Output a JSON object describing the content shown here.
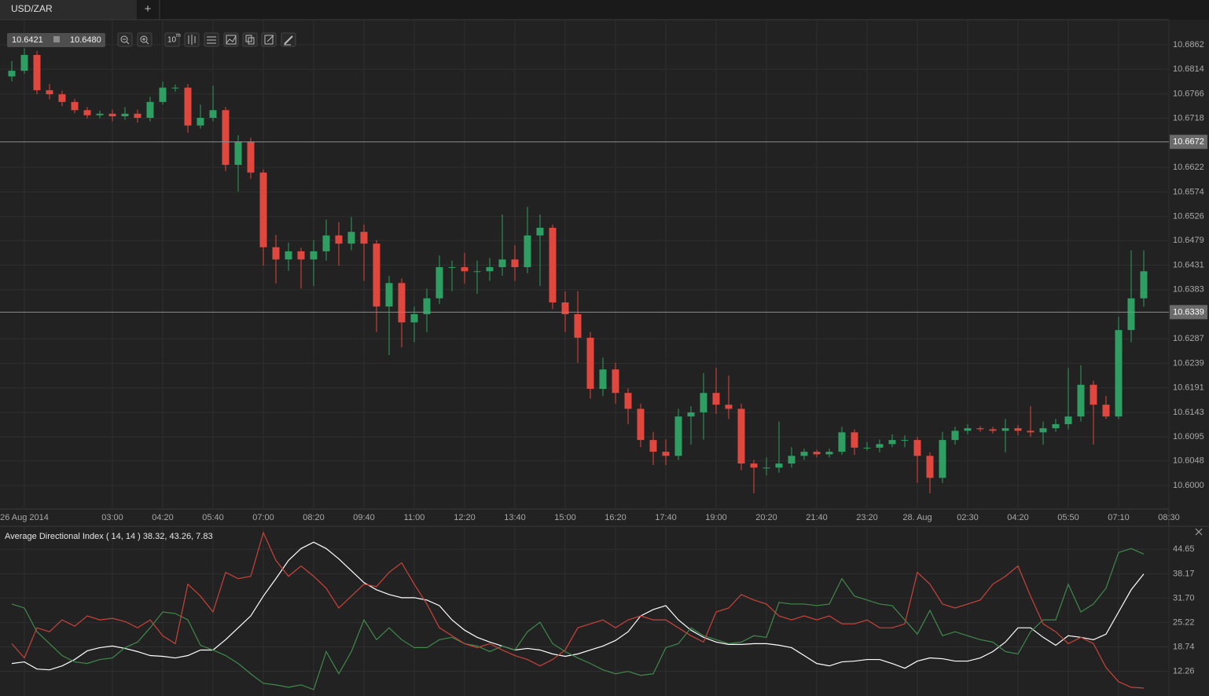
{
  "tab": {
    "title": "USD/ZAR",
    "add": "+"
  },
  "toolbar": {
    "bid": "10.6421",
    "ask": "10.6480",
    "interval": "10",
    "interval_unit": "m"
  },
  "chart_data": [
    {
      "type": "candlestick",
      "categories": [
        null,
        "26 Aug 2014",
        null,
        null,
        null,
        null,
        null,
        null,
        "03:00",
        null,
        null,
        null,
        "04:20",
        null,
        null,
        null,
        "05:40",
        null,
        null,
        null,
        "07:00",
        null,
        null,
        null,
        "08:20",
        null,
        null,
        null,
        "09:40",
        null,
        null,
        null,
        "11:00",
        null,
        null,
        null,
        "12:20",
        null,
        null,
        null,
        "13:40",
        null,
        null,
        null,
        "15:00",
        null,
        null,
        null,
        "16:20",
        null,
        null,
        null,
        "17:40",
        null,
        null,
        null,
        "19:00",
        null,
        null,
        null,
        "20:20",
        null,
        null,
        null,
        "21:40",
        null,
        null,
        null,
        "23:20",
        null,
        null,
        null,
        "28. Aug",
        null,
        null,
        null,
        "02:30",
        null,
        null,
        null,
        "04:20",
        null,
        null,
        null,
        "05:50",
        null,
        null,
        null,
        "07:10",
        null,
        null,
        null,
        "08:30"
      ],
      "open": [
        10.68,
        10.6811,
        10.6842,
        10.6773,
        10.6765,
        10.675,
        10.6734,
        10.6724,
        10.6727,
        10.6722,
        10.6727,
        10.6719,
        10.675,
        10.6778,
        10.6778,
        10.6704,
        10.6719,
        10.6734,
        10.6627,
        10.6673,
        10.6612,
        10.6466,
        10.6442,
        10.6458,
        10.6442,
        10.6458,
        10.6489,
        10.6473,
        10.6496,
        10.6473,
        10.635,
        10.6396,
        10.6319,
        10.6335,
        10.6366,
        10.6427,
        10.6427,
        10.6419,
        10.6419,
        10.6427,
        10.6442,
        10.6427,
        10.6489,
        10.6504,
        10.6358,
        10.6335,
        10.6289,
        10.6189,
        10.6227,
        10.6181,
        10.615,
        10.6089,
        10.6066,
        10.6058,
        10.6135,
        10.6143,
        10.6181,
        10.6158,
        10.615,
        10.6043,
        10.6035,
        10.6035,
        10.6043,
        10.6058,
        10.6066,
        10.6061,
        10.6066,
        10.6104,
        10.6074,
        10.6074,
        10.6081,
        10.6089,
        10.6089,
        10.6058,
        10.6015,
        10.6089,
        10.6107,
        10.6112,
        10.611,
        10.6107,
        10.6112,
        10.6107,
        10.6104,
        10.6112,
        10.612,
        10.6135,
        10.6197,
        10.6158,
        10.6135,
        10.6304,
        10.6366,
        null,
        null
      ],
      "high": [
        10.683,
        10.6855,
        10.685,
        10.6785,
        10.6772,
        10.6756,
        10.674,
        10.6733,
        10.6735,
        10.674,
        10.6735,
        10.676,
        10.679,
        10.6784,
        10.6785,
        10.6745,
        10.6782,
        10.674,
        10.6685,
        10.668,
        10.6618,
        10.649,
        10.6475,
        10.6465,
        10.648,
        10.652,
        10.6515,
        10.6525,
        10.651,
        10.648,
        10.641,
        10.6405,
        10.635,
        10.6385,
        10.645,
        10.644,
        10.6455,
        10.644,
        10.6445,
        10.653,
        10.647,
        10.6545,
        10.653,
        10.651,
        10.638,
        10.638,
        10.63,
        10.625,
        10.624,
        10.619,
        10.616,
        10.6105,
        10.609,
        10.615,
        10.6155,
        10.622,
        10.623,
        10.6215,
        10.616,
        10.605,
        10.6055,
        10.6125,
        10.6075,
        10.6072,
        10.607,
        10.6072,
        10.6115,
        10.611,
        10.6085,
        10.609,
        10.61,
        10.6098,
        10.6095,
        10.6065,
        10.6105,
        10.6115,
        10.612,
        10.6116,
        10.6115,
        10.613,
        10.6118,
        10.6155,
        10.6125,
        10.613,
        10.623,
        10.6235,
        10.6205,
        10.6175,
        10.633,
        10.646,
        10.646,
        null,
        null
      ],
      "low": [
        10.679,
        10.6805,
        10.6765,
        10.6755,
        10.6742,
        10.6728,
        10.6718,
        10.6718,
        10.6712,
        10.6715,
        10.671,
        10.6712,
        10.6745,
        10.677,
        10.669,
        10.6698,
        10.6712,
        10.6615,
        10.6575,
        10.66,
        10.643,
        10.6395,
        10.642,
        10.6385,
        10.639,
        10.644,
        10.643,
        10.646,
        10.64,
        10.63,
        10.6255,
        10.627,
        10.628,
        10.63,
        10.6355,
        10.638,
        10.6395,
        10.6375,
        10.64,
        10.641,
        10.64,
        10.6415,
        10.639,
        10.6345,
        10.63,
        10.624,
        10.617,
        10.6175,
        10.616,
        10.612,
        10.6075,
        10.604,
        10.604,
        10.605,
        10.608,
        10.609,
        10.614,
        10.613,
        10.603,
        10.5985,
        10.602,
        10.6025,
        10.6035,
        10.605,
        10.6055,
        10.6055,
        10.606,
        10.606,
        10.6068,
        10.6065,
        10.6075,
        10.6075,
        10.6005,
        10.5985,
        10.6005,
        10.608,
        10.61,
        10.6105,
        10.6102,
        10.6065,
        10.6098,
        10.6095,
        10.608,
        10.6105,
        10.611,
        10.6125,
        10.608,
        10.613,
        10.613,
        10.628,
        10.635,
        null,
        null
      ],
      "close": [
        10.6811,
        10.6842,
        10.6773,
        10.6765,
        10.675,
        10.6734,
        10.6724,
        10.6727,
        10.6722,
        10.6727,
        10.6719,
        10.675,
        10.6778,
        10.6778,
        10.6704,
        10.6719,
        10.6734,
        10.6627,
        10.6673,
        10.6612,
        10.6466,
        10.6442,
        10.6458,
        10.6442,
        10.6458,
        10.6489,
        10.6473,
        10.6496,
        10.6473,
        10.635,
        10.6396,
        10.6319,
        10.6335,
        10.6366,
        10.6427,
        10.6427,
        10.6419,
        10.6419,
        10.6427,
        10.6442,
        10.6427,
        10.6489,
        10.6504,
        10.6358,
        10.6335,
        10.6289,
        10.6189,
        10.6227,
        10.6181,
        10.615,
        10.6089,
        10.6066,
        10.6058,
        10.6135,
        10.6143,
        10.6181,
        10.6158,
        10.615,
        10.6043,
        10.6035,
        10.6035,
        10.6043,
        10.6058,
        10.6066,
        10.6061,
        10.6066,
        10.6104,
        10.6074,
        10.6074,
        10.6081,
        10.6089,
        10.6089,
        10.6058,
        10.6015,
        10.6089,
        10.6107,
        10.6112,
        10.611,
        10.6107,
        10.6112,
        10.6107,
        10.6104,
        10.6112,
        10.612,
        10.6135,
        10.6197,
        10.6158,
        10.6135,
        10.6304,
        10.6366,
        10.6419,
        null,
        null
      ],
      "up_color": "#2f9e62",
      "down_color": "#e0473f",
      "ylim": [
        10.5954,
        10.6911
      ],
      "yticks": [
        10.6862,
        10.6814,
        10.6766,
        10.6718,
        10.6622,
        10.6574,
        10.6526,
        10.6479,
        10.6431,
        10.6383,
        10.6287,
        10.6239,
        10.6191,
        10.6143,
        10.6095,
        10.6048,
        {
          "value": 10.6,
          "label": "10.6000"
        }
      ],
      "hlines": [
        10.6672,
        10.6339
      ],
      "grid": true
    },
    {
      "type": "line",
      "title": "Average Directional Index ( 14, 14 ) 38.32, 43.26, 7.83",
      "series": [
        {
          "color": "#ffffff",
          "values": [
            14.33,
            14.76,
            12.86,
            12.65,
            13.7,
            15.39,
            17.7,
            18.54,
            18.97,
            18.33,
            17.49,
            16.44,
            16.23,
            15.81,
            16.44,
            17.91,
            17.91,
            20.65,
            23.81,
            26.97,
            32.23,
            36.86,
            41.7,
            44.86,
            46.54,
            44.86,
            42.12,
            38.97,
            35.81,
            33.91,
            32.65,
            31.81,
            31.81,
            31.18,
            29.7,
            25.91,
            23.18,
            21.28,
            20.02,
            18.97,
            17.91,
            18.33,
            17.91,
            16.86,
            16.23,
            16.86,
            17.91,
            18.97,
            20.44,
            22.76,
            26.97,
            28.65,
            29.7,
            25.91,
            23.18,
            21.28,
            20.02,
            19.39,
            19.39,
            19.6,
            19.6,
            19.18,
            18.54,
            16.44,
            14.33,
            13.7,
            14.76,
            14.97,
            15.39,
            15.39,
            14.33,
            13.07,
            14.97,
            15.81,
            15.6,
            14.97,
            14.97,
            15.81,
            17.49,
            20.02,
            23.81,
            23.81,
            21.28,
            19.18,
            21.7,
            21.28,
            20.65,
            22.12,
            28.02,
            33.91,
            38.12
          ]
        },
        {
          "color": "#3f8a4c",
          "values": [
            30.12,
            29.07,
            22.76,
            19.6,
            16.44,
            14.76,
            14.33,
            15.39,
            15.81,
            18.54,
            20.02,
            23.81,
            28.02,
            27.6,
            25.91,
            19.18,
            17.91,
            16.44,
            14.33,
            11.6,
            9.07,
            8.65,
            8.02,
            8.65,
            7.39,
            17.49,
            11.6,
            17.49,
            25.91,
            20.65,
            23.81,
            20.65,
            18.54,
            18.54,
            20.65,
            21.28,
            19.6,
            18.97,
            17.49,
            18.97,
            17.91,
            22.76,
            25.28,
            19.6,
            17.49,
            15.81,
            14.33,
            12.65,
            11.6,
            12.23,
            11.18,
            11.6,
            18.54,
            19.6,
            23.81,
            21.7,
            20.65,
            19.6,
            20.02,
            21.7,
            21.28,
            30.54,
            30.12,
            30.12,
            29.7,
            30.12,
            36.86,
            32.23,
            31.18,
            30.12,
            29.7,
            25.91,
            22.12,
            28.44,
            21.7,
            22.76,
            21.7,
            20.65,
            20.02,
            17.49,
            16.86,
            22.76,
            25.91,
            25.91,
            35.39,
            28.02,
            30.12,
            34.33,
            43.81,
            44.86,
            43.39
          ]
        },
        {
          "color": "#c9433a",
          "values": [
            19.6,
            15.81,
            23.81,
            22.76,
            25.91,
            24.23,
            26.97,
            25.91,
            26.33,
            25.49,
            23.81,
            25.91,
            21.7,
            19.6,
            35.39,
            32.23,
            28.02,
            38.54,
            36.86,
            37.49,
            49.07,
            41.7,
            37.49,
            40.23,
            37.49,
            34.33,
            29.07,
            32.23,
            35.39,
            34.76,
            38.54,
            41.07,
            35.39,
            30.12,
            23.81,
            21.7,
            19.6,
            18.54,
            19.6,
            17.91,
            16.44,
            15.39,
            13.7,
            15.39,
            17.91,
            23.81,
            24.86,
            25.91,
            23.81,
            25.91,
            26.97,
            25.91,
            25.91,
            23.81,
            21.7,
            20.02,
            28.02,
            29.07,
            32.65,
            31.18,
            30.12,
            26.97,
            25.91,
            26.97,
            25.91,
            26.97,
            24.86,
            24.86,
            25.91,
            23.81,
            23.81,
            24.86,
            38.54,
            35.39,
            30.12,
            29.07,
            30.12,
            31.18,
            35.39,
            37.49,
            40.23,
            32.23,
            24.86,
            22.76,
            19.6,
            21.28,
            19.6,
            13.28,
            9.49,
            8.02,
            7.81
          ]
        }
      ],
      "ylim": [
        5.7,
        50.76
      ],
      "yticks": [
        44.65,
        38.17,
        {
          "value": 31.7,
          "label": "31.70"
        },
        25.22,
        18.74,
        12.26
      ],
      "grid": true
    }
  ]
}
